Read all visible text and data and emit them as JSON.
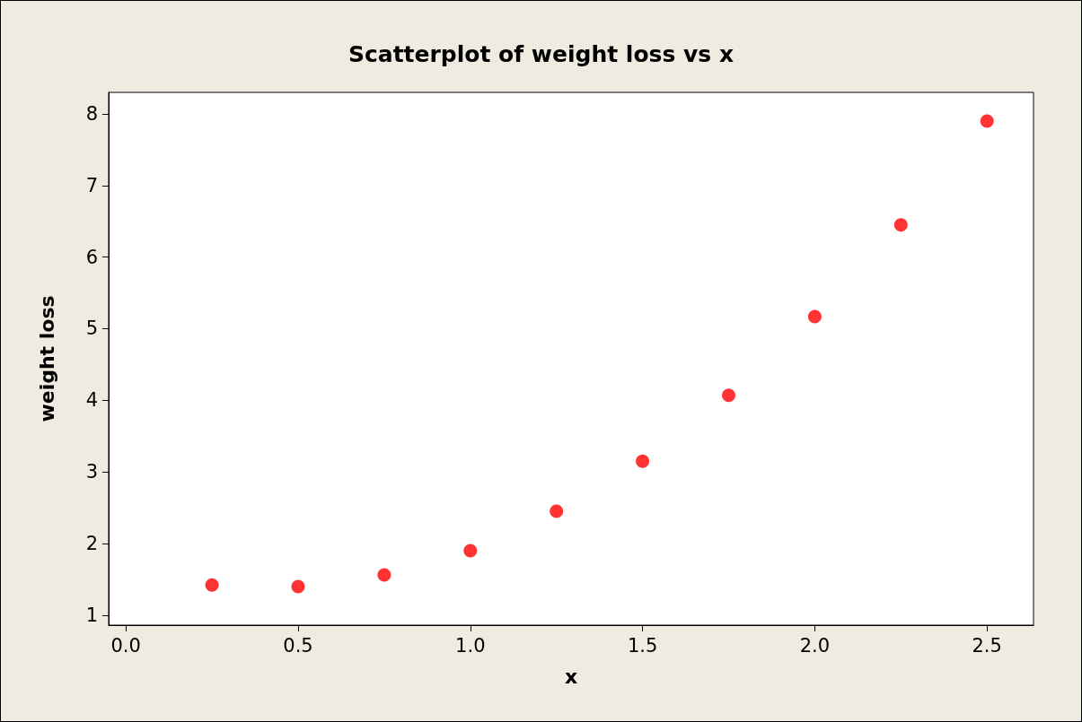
{
  "chart_data": {
    "type": "scatter",
    "title": "Scatterplot of weight loss vs x",
    "xlabel": "x",
    "ylabel": "weight loss",
    "x": [
      0.25,
      0.5,
      0.75,
      1.0,
      1.25,
      1.5,
      1.75,
      2.0,
      2.25,
      2.5
    ],
    "series": [
      {
        "color": "#ff0000",
        "values": [
          1.42,
          1.4,
          1.56,
          1.9,
          2.45,
          3.15,
          4.07,
          5.17,
          6.45,
          7.9
        ]
      }
    ],
    "xlim": [
      -0.05,
      2.635
    ],
    "xticks": [
      {
        "value": 0,
        "label": "0.0"
      },
      0.5,
      {
        "value": 1,
        "label": "1.0"
      },
      1.5,
      {
        "value": 2,
        "label": "2.0"
      },
      2.5
    ],
    "ylim": [
      0.86,
      8.3
    ],
    "yticks": [
      1,
      2,
      3,
      4,
      5,
      6,
      7,
      8
    ],
    "grid": false,
    "marker": "circle"
  }
}
